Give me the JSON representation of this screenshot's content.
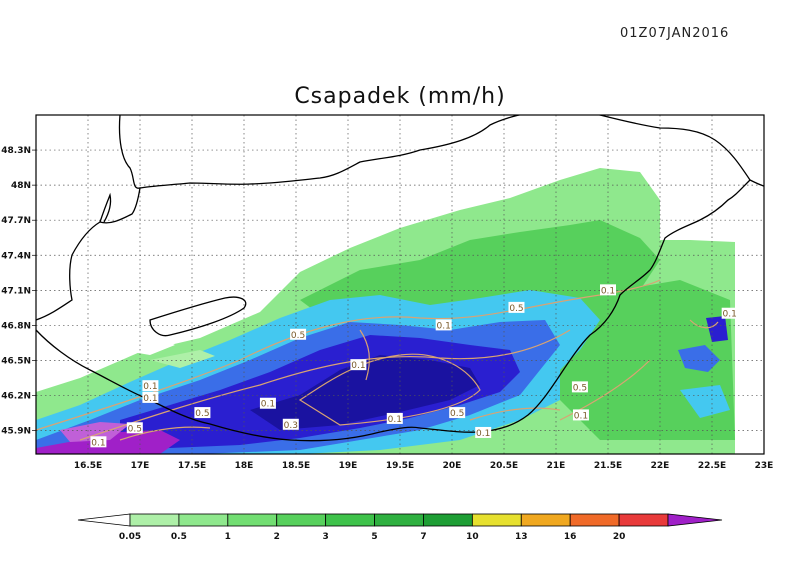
{
  "header": {
    "timestamp": "01Z07JAN2016",
    "title": "Csapadek (mm/h)"
  },
  "map": {
    "lon_range": [
      16.0,
      23.0
    ],
    "lat_range": [
      45.7,
      48.6
    ],
    "lat_ticks": [
      "48.3N",
      "48N",
      "47.7N",
      "47.4N",
      "47.1N",
      "46.8N",
      "46.5N",
      "46.2N",
      "45.9N"
    ],
    "lon_ticks": [
      "16.5E",
      "17E",
      "17.5E",
      "18E",
      "18.5E",
      "19E",
      "19.5E",
      "20E",
      "20.5E",
      "21E",
      "21.5E",
      "22E",
      "22.5E",
      "23E"
    ],
    "grid": "dotted",
    "contour_labels": [
      {
        "text": "0.1",
        "lon": 19.1,
        "lat": 46.46
      },
      {
        "text": "0.5",
        "lon": 18.52,
        "lat": 46.72
      },
      {
        "text": "0.1",
        "lon": 19.92,
        "lat": 46.8
      },
      {
        "text": "0.5",
        "lon": 20.62,
        "lat": 46.95
      },
      {
        "text": "0.1",
        "lon": 21.5,
        "lat": 47.1
      },
      {
        "text": "0.1",
        "lon": 22.67,
        "lat": 46.9
      },
      {
        "text": "0.5",
        "lon": 21.23,
        "lat": 46.27
      },
      {
        "text": "0.1",
        "lon": 21.24,
        "lat": 46.03
      },
      {
        "text": "0.5",
        "lon": 20.05,
        "lat": 46.05
      },
      {
        "text": "0.1",
        "lon": 20.3,
        "lat": 45.88
      },
      {
        "text": "0.1",
        "lon": 19.45,
        "lat": 46.0
      },
      {
        "text": "0.3",
        "lon": 18.45,
        "lat": 45.95
      },
      {
        "text": "0.1",
        "lon": 18.23,
        "lat": 46.13
      },
      {
        "text": "0.5",
        "lon": 17.6,
        "lat": 46.05
      },
      {
        "text": "0.1",
        "lon": 17.1,
        "lat": 46.28
      },
      {
        "text": "0.1",
        "lon": 17.1,
        "lat": 46.18
      },
      {
        "text": "0.5",
        "lon": 16.95,
        "lat": 45.92
      },
      {
        "text": "0.1",
        "lon": 16.6,
        "lat": 45.8
      }
    ]
  },
  "colorbar": {
    "labels": [
      "0.05",
      "0.5",
      "1",
      "2",
      "3",
      "5",
      "7",
      "10",
      "13",
      "16",
      "20"
    ],
    "colors": [
      "#aef0a8",
      "#8fe88d",
      "#72de72",
      "#57d05c",
      "#3ec24a",
      "#2fb040",
      "#1e9e34",
      "#e6e02e",
      "#f0a820",
      "#f06a28",
      "#e83a3a"
    ],
    "low_color": "#ffffff",
    "high_color": "#a020c8"
  },
  "colors": {
    "light_green": "#8fe88d",
    "green": "#57d05c",
    "cyan": "#44c8f0",
    "blue": "#3a6ee8",
    "dark_blue": "#2a1fd0",
    "navy": "#1a12a0",
    "purple": "#a020c8",
    "contour": "#d9a373"
  }
}
